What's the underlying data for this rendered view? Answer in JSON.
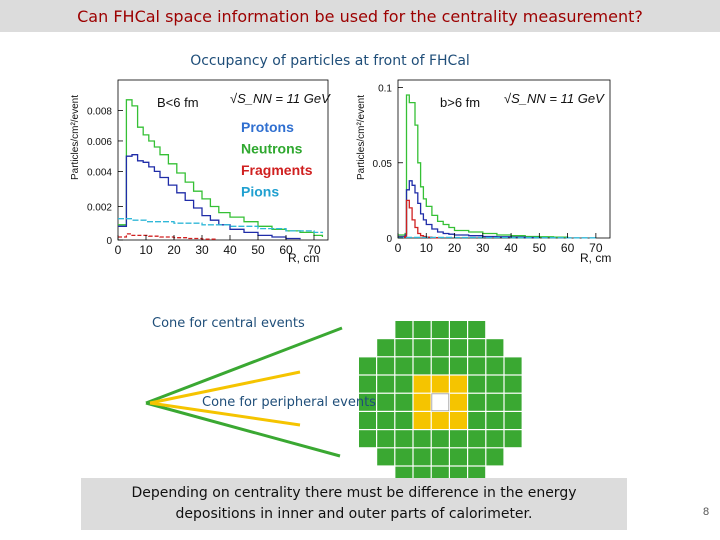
{
  "slide": {
    "title": "Can FHCal space information be used for the centrality measurement?",
    "subtitle": "Occupancy of particles at front of FHCal",
    "page_number": "8",
    "note_line1": "Depending on centrality there must be difference in  the energy",
    "note_line2": "depositions in inner and outer parts of calorimeter."
  },
  "cones": {
    "central_label": "Cone for central events",
    "peripheral_label": "Cone for peripheral events",
    "green": "#3aa832",
    "yellow": "#f5c400"
  },
  "calorimeter": {
    "grid": [
      [
        0,
        0,
        1,
        1,
        1,
        1,
        1,
        0,
        0
      ],
      [
        0,
        1,
        1,
        1,
        1,
        1,
        1,
        1,
        0
      ],
      [
        1,
        1,
        1,
        1,
        1,
        1,
        1,
        1,
        1
      ],
      [
        1,
        1,
        1,
        2,
        2,
        2,
        1,
        1,
        1
      ],
      [
        1,
        1,
        1,
        2,
        3,
        2,
        1,
        1,
        1
      ],
      [
        1,
        1,
        1,
        2,
        2,
        2,
        1,
        1,
        1
      ],
      [
        1,
        1,
        1,
        1,
        1,
        1,
        1,
        1,
        1
      ],
      [
        0,
        1,
        1,
        1,
        1,
        1,
        1,
        1,
        0
      ],
      [
        0,
        0,
        1,
        1,
        1,
        1,
        1,
        0,
        0
      ]
    ],
    "colors": {
      "outer": "#3aa832",
      "inner": "#f5c400",
      "hole": "#ffffff"
    }
  },
  "chart_data": [
    {
      "type": "line",
      "ylabel": "Particles/cm²/event",
      "xlabel": "R, cm",
      "label_centrality": "B<6 fm",
      "label_energy": "√S_NN = 11 GeV",
      "yticks": [
        "0.008",
        "0.006",
        "0.004",
        "0.002",
        "0"
      ],
      "xticks": [
        "0",
        "10",
        "20",
        "30",
        "40",
        "50",
        "60",
        "70"
      ],
      "xlim": [
        0,
        75
      ],
      "ylim": [
        0,
        0.0105
      ],
      "legend": [
        "Protons",
        "Neutrons",
        "Fragments",
        "Pions"
      ],
      "legend_colors": [
        "#2f6fd0",
        "#2fa82f",
        "#d02020",
        "#20a0d0"
      ],
      "series": [
        {
          "name": "Neutrons",
          "color": "#35c035",
          "x": [
            0,
            3,
            5,
            7,
            9,
            11,
            13,
            15,
            18,
            21,
            24,
            27,
            30,
            33,
            36,
            40,
            45,
            50,
            55,
            60,
            65,
            70,
            73
          ],
          "y": [
            0.001,
            0.0092,
            0.0088,
            0.0074,
            0.0069,
            0.0065,
            0.0061,
            0.0056,
            0.005,
            0.0044,
            0.0038,
            0.0032,
            0.0027,
            0.0022,
            0.0018,
            0.0015,
            0.0012,
            0.0009,
            0.0007,
            0.0006,
            0.0005,
            0.0003,
            0.0002
          ]
        },
        {
          "name": "Protons",
          "color": "#1f2ca8",
          "x": [
            0,
            3,
            5,
            7,
            9,
            11,
            13,
            15,
            18,
            21,
            24,
            27,
            30,
            33,
            36,
            40,
            45,
            50,
            55,
            60,
            65
          ],
          "y": [
            0.0009,
            0.0055,
            0.0056,
            0.0052,
            0.0051,
            0.0048,
            0.0045,
            0.0041,
            0.0036,
            0.0031,
            0.0026,
            0.0021,
            0.0016,
            0.0013,
            0.001,
            0.0007,
            0.0005,
            0.0003,
            0.0002,
            0.0001,
            5e-05
          ]
        },
        {
          "name": "Pions",
          "color": "#30b8d8",
          "x": [
            0,
            5,
            10,
            20,
            30,
            40,
            50,
            60,
            70,
            73
          ],
          "y": [
            0.0014,
            0.0013,
            0.0012,
            0.0011,
            0.001,
            0.0009,
            0.00075,
            0.0006,
            0.0005,
            0.00045
          ]
        },
        {
          "name": "Fragments",
          "color": "#d02020",
          "x": [
            0,
            3,
            5,
            8,
            11,
            15,
            20,
            25,
            30,
            35
          ],
          "y": [
            0.0002,
            0.0004,
            0.0003,
            0.0003,
            0.00025,
            0.0002,
            0.00015,
            0.0001,
            5e-05,
            2e-05
          ]
        }
      ]
    },
    {
      "type": "line",
      "ylabel": "Particles/cm²/event",
      "xlabel": "R, cm",
      "label_centrality": "b>6 fm",
      "label_energy": "√S_NN = 11 GeV",
      "yticks": [
        "0.1",
        "0.05",
        "0"
      ],
      "xticks": [
        "0",
        "10",
        "20",
        "30",
        "40",
        "50",
        "60",
        "70"
      ],
      "xlim": [
        0,
        75
      ],
      "ylim": [
        0,
        0.105
      ],
      "series": [
        {
          "name": "Neutrons",
          "color": "#35c035",
          "x": [
            0,
            2.5,
            3,
            4,
            5,
            6,
            7,
            8,
            9,
            10,
            12,
            14,
            16,
            18,
            20,
            25,
            30,
            35,
            40,
            45,
            50,
            55,
            60
          ],
          "y": [
            0.002,
            0.003,
            0.095,
            0.09,
            0.09,
            0.075,
            0.05,
            0.034,
            0.026,
            0.021,
            0.015,
            0.011,
            0.009,
            0.007,
            0.005,
            0.004,
            0.003,
            0.002,
            0.0015,
            0.001,
            0.0008,
            0.0005,
            0.0003
          ]
        },
        {
          "name": "Protons",
          "color": "#1f2ca8",
          "x": [
            0,
            2.5,
            3,
            4,
            5,
            6,
            7,
            8,
            9,
            10,
            12,
            14,
            16,
            18,
            20,
            25,
            30,
            35,
            40,
            45,
            50
          ],
          "y": [
            0.001,
            0.002,
            0.032,
            0.038,
            0.035,
            0.03,
            0.023,
            0.016,
            0.012,
            0.009,
            0.006,
            0.004,
            0.003,
            0.0025,
            0.002,
            0.0015,
            0.001,
            0.0008,
            0.0005,
            0.0003,
            0.0002
          ]
        },
        {
          "name": "Fragments",
          "color": "#d02020",
          "x": [
            0,
            2.5,
            3,
            4,
            5,
            6,
            7,
            8,
            9,
            10,
            12,
            15
          ],
          "y": [
            0.0005,
            0.001,
            0.025,
            0.02,
            0.012,
            0.007,
            0.003,
            0.0015,
            0.001,
            0.0005,
            0.0002,
            0.0001
          ]
        },
        {
          "name": "Pions",
          "color": "#30b8d8",
          "x": [
            0,
            10,
            20,
            30,
            40,
            50,
            60,
            70
          ],
          "y": [
            0.0004,
            0.0004,
            0.0003,
            0.0003,
            0.0002,
            0.0002,
            0.0001,
            0.0001
          ]
        }
      ]
    }
  ]
}
